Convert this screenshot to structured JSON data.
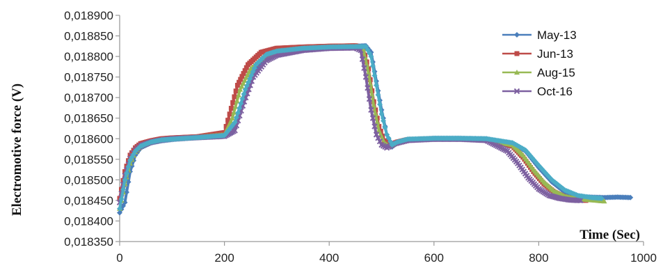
{
  "chart_data": {
    "type": "scatter",
    "title": "",
    "xlabel": "Time (Sec)",
    "ylabel": "Electromotive force (V)",
    "xlim": [
      0,
      1000
    ],
    "ylim": [
      0.01835,
      0.0189
    ],
    "x_ticks": [
      "0",
      "200",
      "400",
      "600",
      "800",
      "1000"
    ],
    "y_ticks": [
      "0,018350",
      "0,018400",
      "0,018450",
      "0,018500",
      "0,018550",
      "0,018600",
      "0,018650",
      "0,018700",
      "0,018750",
      "0,018800",
      "0,018850",
      "0,018900"
    ],
    "grid": false,
    "legend_position": "top-right",
    "series": [
      {
        "name": "May-13",
        "color": "#4a7ebb",
        "marker": "diamond",
        "x": [
          0,
          10,
          20,
          30,
          40,
          60,
          80,
          100,
          150,
          200,
          215,
          230,
          250,
          275,
          300,
          350,
          400,
          450,
          470,
          480,
          490,
          500,
          510,
          520,
          530,
          550,
          600,
          650,
          700,
          750,
          775,
          800,
          825,
          850,
          875,
          900,
          925,
          950,
          975
        ],
        "y": [
          0.01842,
          0.018445,
          0.01852,
          0.01856,
          0.018578,
          0.01859,
          0.018595,
          0.018598,
          0.018603,
          0.018607,
          0.018615,
          0.01867,
          0.01875,
          0.01879,
          0.018808,
          0.018818,
          0.018822,
          0.018825,
          0.018826,
          0.01881,
          0.01874,
          0.01867,
          0.01861,
          0.01858,
          0.01859,
          0.018598,
          0.018601,
          0.018601,
          0.0186,
          0.018588,
          0.01857,
          0.01853,
          0.018495,
          0.01847,
          0.01846,
          0.018458,
          0.018457,
          0.018458,
          0.018457
        ]
      },
      {
        "name": "Jun-13",
        "color": "#be4b48",
        "marker": "square",
        "x": [
          0,
          10,
          20,
          30,
          40,
          60,
          80,
          100,
          150,
          200,
          210,
          225,
          245,
          270,
          300,
          350,
          400,
          450,
          465,
          475,
          485,
          495,
          505,
          515,
          530,
          550,
          600,
          650,
          700,
          750,
          770,
          790,
          810,
          830,
          850,
          870,
          890
        ],
        "y": [
          0.018455,
          0.01852,
          0.01856,
          0.018578,
          0.018588,
          0.018595,
          0.0186,
          0.018602,
          0.018605,
          0.018615,
          0.01866,
          0.01873,
          0.01878,
          0.01881,
          0.01882,
          0.018823,
          0.018825,
          0.018826,
          0.01882,
          0.01877,
          0.01869,
          0.01863,
          0.018595,
          0.018585,
          0.018592,
          0.018598,
          0.0186,
          0.018599,
          0.018598,
          0.018582,
          0.018555,
          0.01852,
          0.01849,
          0.01847,
          0.018458,
          0.018452,
          0.01845
        ]
      },
      {
        "name": "Aug-15",
        "color": "#98b954",
        "marker": "triangle",
        "x": [
          0,
          10,
          20,
          30,
          40,
          60,
          80,
          100,
          150,
          200,
          215,
          230,
          250,
          275,
          300,
          350,
          400,
          450,
          465,
          475,
          485,
          495,
          505,
          515,
          530,
          550,
          600,
          650,
          700,
          750,
          770,
          790,
          810,
          830,
          850,
          870,
          890,
          910,
          925
        ],
        "y": [
          0.01843,
          0.01849,
          0.01854,
          0.018568,
          0.018582,
          0.018592,
          0.018597,
          0.0186,
          0.018604,
          0.01861,
          0.01865,
          0.01872,
          0.01877,
          0.0188,
          0.018813,
          0.01882,
          0.018823,
          0.018824,
          0.018818,
          0.01876,
          0.01868,
          0.01862,
          0.01859,
          0.018582,
          0.01859,
          0.018597,
          0.0186,
          0.0186,
          0.018598,
          0.018585,
          0.01856,
          0.018525,
          0.018495,
          0.018472,
          0.01846,
          0.018455,
          0.018452,
          0.01845,
          0.018448
        ]
      },
      {
        "name": "Oct-16",
        "color": "#7d60a0",
        "marker": "x",
        "x": [
          0,
          10,
          20,
          30,
          40,
          60,
          80,
          100,
          150,
          200,
          220,
          235,
          255,
          280,
          300,
          350,
          400,
          450,
          460,
          470,
          480,
          490,
          500,
          510,
          525,
          550,
          600,
          650,
          700,
          740,
          760,
          780,
          800,
          820,
          840,
          860,
          880
        ],
        "y": [
          0.018445,
          0.01851,
          0.018552,
          0.018572,
          0.018583,
          0.018592,
          0.018597,
          0.0186,
          0.018603,
          0.018606,
          0.01862,
          0.01868,
          0.01875,
          0.01879,
          0.018803,
          0.018815,
          0.01882,
          0.018821,
          0.018815,
          0.01875,
          0.01867,
          0.01861,
          0.018585,
          0.018578,
          0.018588,
          0.018596,
          0.018599,
          0.018599,
          0.018596,
          0.01857,
          0.01854,
          0.018505,
          0.018478,
          0.018462,
          0.018455,
          0.018451,
          0.01845
        ]
      },
      {
        "name": "",
        "color": "#4bacc6",
        "marker": "diamond",
        "x": [
          0,
          10,
          20,
          30,
          40,
          60,
          80,
          100,
          150,
          200,
          220,
          240,
          260,
          280,
          300,
          350,
          400,
          450,
          470,
          480,
          490,
          500,
          510,
          520,
          530,
          550,
          600,
          650,
          700,
          750,
          775,
          800,
          825,
          850,
          875,
          900,
          920
        ],
        "y": [
          0.01843,
          0.0185,
          0.018548,
          0.01857,
          0.018582,
          0.018592,
          0.018597,
          0.018599,
          0.018603,
          0.018608,
          0.01864,
          0.01872,
          0.01878,
          0.018805,
          0.018813,
          0.01882,
          0.018823,
          0.018824,
          0.018824,
          0.0188,
          0.01873,
          0.01866,
          0.01861,
          0.018585,
          0.018592,
          0.018599,
          0.018601,
          0.018601,
          0.0186,
          0.01859,
          0.018572,
          0.018535,
          0.0185,
          0.018475,
          0.018462,
          0.018457,
          0.018455
        ]
      }
    ]
  }
}
